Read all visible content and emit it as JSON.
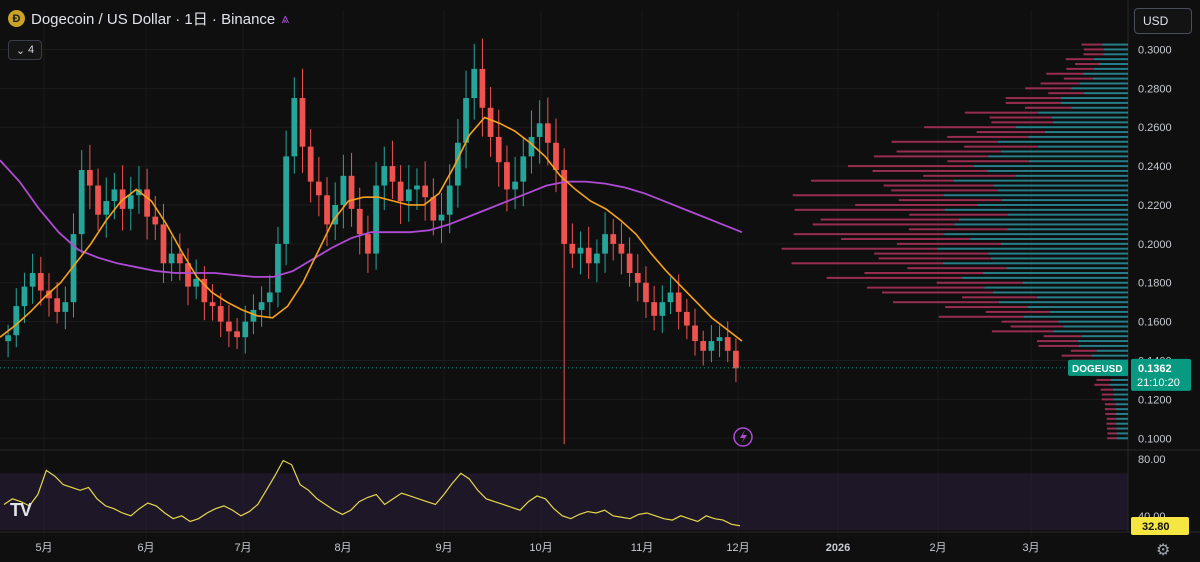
{
  "header": {
    "title": "Dogecoin / US Dollar · 1日 · Binance",
    "coin_icon": "dogecoin-logo-icon",
    "share_icon": "share-icon",
    "indicator_count": "4",
    "currency": "USD"
  },
  "colors": {
    "up": "#26a69a",
    "down": "#ef5350",
    "ma_short": "#f7a21b",
    "ma_long": "#b04bd6",
    "rsi": "#e6d84a",
    "price_tag": "#089981"
  },
  "chart_data": [
    {
      "type": "line",
      "title": "",
      "symbol": "DOGEUSD",
      "last_price": "0.1362",
      "countdown": "21:10:20",
      "y_ticks": [
        "0.3000",
        "0.2800",
        "0.2600",
        "0.2400",
        "0.2200",
        "0.2000",
        "0.1800",
        "0.1600",
        "0.1400",
        "0.1200",
        "0.1000"
      ],
      "ylim": [
        0.095,
        0.31
      ],
      "x_ticks": [
        "5月",
        "6月",
        "7月",
        "8月",
        "9月",
        "10月",
        "11月",
        "12月",
        "2026",
        "2月",
        "3月"
      ],
      "series": [
        {
          "values_desc": "daily closes",
          "close": [
            0.153,
            0.168,
            0.178,
            0.185,
            0.176,
            0.172,
            0.165,
            0.17,
            0.205,
            0.238,
            0.23,
            0.215,
            0.222,
            0.228,
            0.218,
            0.225,
            0.228,
            0.214,
            0.21,
            0.19,
            0.195,
            0.19,
            0.178,
            0.182,
            0.17,
            0.168,
            0.16,
            0.155,
            0.152,
            0.16,
            0.166,
            0.17,
            0.175,
            0.2,
            0.245,
            0.275,
            0.25,
            0.232,
            0.225,
            0.21,
            0.22,
            0.235,
            0.218,
            0.205,
            0.195,
            0.23,
            0.24,
            0.232,
            0.222,
            0.228,
            0.23,
            0.224,
            0.212,
            0.215,
            0.23,
            0.252,
            0.275,
            0.29,
            0.27,
            0.255,
            0.242,
            0.228,
            0.232,
            0.245,
            0.255,
            0.262,
            0.252,
            0.238,
            0.2,
            0.195,
            0.198,
            0.19,
            0.195,
            0.205,
            0.2,
            0.195,
            0.185,
            0.18,
            0.17,
            0.163,
            0.17,
            0.175,
            0.165,
            0.158,
            0.15,
            0.145,
            0.15,
            0.152,
            0.145,
            0.136
          ]
        },
        {
          "name": "",
          "kind": "moving-average-short",
          "values": [
            0.152,
            0.158,
            0.165,
            0.173,
            0.18,
            0.19,
            0.2,
            0.212,
            0.222,
            0.228,
            0.222,
            0.21,
            0.196,
            0.183,
            0.175,
            0.17,
            0.166,
            0.163,
            0.162,
            0.168,
            0.18,
            0.196,
            0.212,
            0.222,
            0.224,
            0.224,
            0.222,
            0.22,
            0.22,
            0.226,
            0.24,
            0.256,
            0.265,
            0.262,
            0.258,
            0.252,
            0.245,
            0.235,
            0.228,
            0.222,
            0.218,
            0.212,
            0.205,
            0.195,
            0.186,
            0.178,
            0.17,
            0.162,
            0.156,
            0.15
          ]
        },
        {
          "name": "",
          "kind": "moving-average-long",
          "values": [
            0.243,
            0.232,
            0.218,
            0.206,
            0.197,
            0.193,
            0.19,
            0.188,
            0.186,
            0.185,
            0.185,
            0.185,
            0.184,
            0.183,
            0.183,
            0.186,
            0.192,
            0.198,
            0.203,
            0.206,
            0.206,
            0.206,
            0.207,
            0.21,
            0.214,
            0.218,
            0.222,
            0.226,
            0.23,
            0.232,
            0.232,
            0.231,
            0.229,
            0.226,
            0.222,
            0.218,
            0.214,
            0.21,
            0.206
          ]
        }
      ]
    },
    {
      "type": "line",
      "title": "",
      "y_ticks": [
        "80.00",
        "40.00"
      ],
      "ylim": [
        30,
        85
      ],
      "band": [
        30,
        70
      ],
      "last_value": "32.80",
      "series": [
        {
          "name": "",
          "values": [
            48,
            52,
            50,
            47,
            55,
            72,
            68,
            62,
            60,
            58,
            60,
            52,
            47,
            45,
            42,
            40,
            45,
            49,
            47,
            42,
            38,
            40,
            36,
            38,
            42,
            45,
            47,
            44,
            40,
            43,
            48,
            58,
            68,
            79,
            76,
            62,
            58,
            52,
            48,
            44,
            41,
            44,
            50,
            53,
            55,
            48,
            52,
            56,
            54,
            52,
            50,
            48,
            55,
            63,
            70,
            66,
            58,
            52,
            50,
            48,
            46,
            44,
            50,
            54,
            52,
            45,
            40,
            38,
            41,
            43,
            42,
            44,
            40,
            39,
            38,
            41,
            42,
            40,
            38,
            37,
            40,
            38,
            36,
            40,
            38,
            37,
            34,
            33
          ]
        }
      ]
    }
  ]
}
